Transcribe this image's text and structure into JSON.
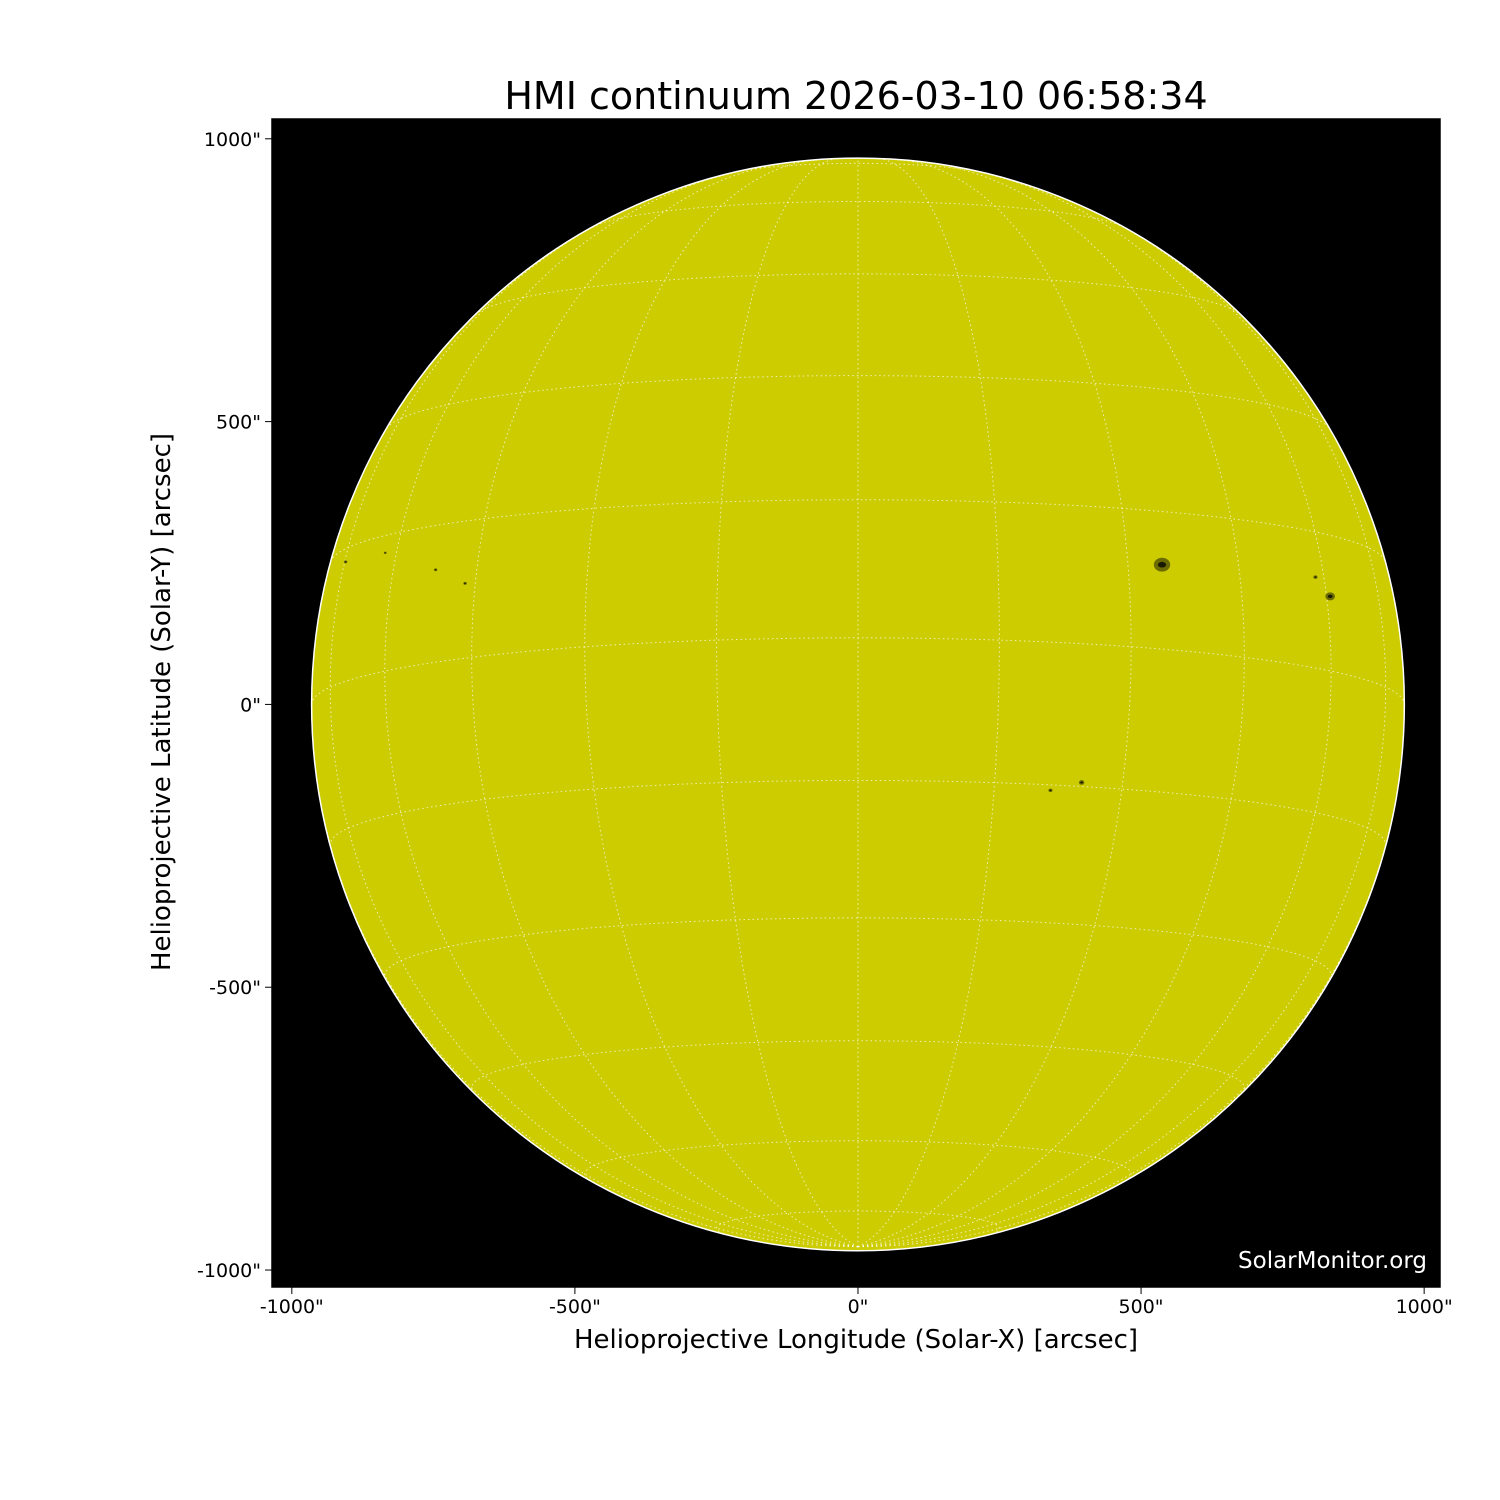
{
  "chart_data": {
    "type": "heatmap",
    "title": "HMI continuum 2026-03-10 06:58:34",
    "xlabel": "Helioprojective Longitude (Solar-X) [arcsec]",
    "ylabel": "Helioprojective Latitude (Solar-Y) [arcsec]",
    "xlim": [
      -1035,
      1028
    ],
    "ylim": [
      -1030,
      1035
    ],
    "xticks": [
      -1000,
      -500,
      0,
      500,
      1000
    ],
    "yticks": [
      -1000,
      -500,
      0,
      500,
      1000
    ],
    "xtick_labels": [
      "-1000\"",
      "-500\"",
      "0\"",
      "500\"",
      "1000\""
    ],
    "ytick_labels": [
      "-1000\"",
      "-500\"",
      "0\"",
      "500\"",
      "1000\""
    ],
    "solar_radius_arcsec": 965,
    "grid": {
      "type": "heliographic",
      "spacing_deg": 15,
      "b0_deg": -7,
      "style": "dotted",
      "color": "#ffffff"
    },
    "colors": {
      "disk": "#cccc00",
      "background": "#000000",
      "sunspot": "#1a1a00"
    },
    "sunspots_arcsec": [
      {
        "x": 537,
        "y": 247,
        "size": 24
      },
      {
        "x": 834,
        "y": 191,
        "size": 14
      },
      {
        "x": 808,
        "y": 225,
        "size": 6
      },
      {
        "x": 395,
        "y": -138,
        "size": 8
      },
      {
        "x": 340,
        "y": -152,
        "size": 6
      },
      {
        "x": -694,
        "y": 214,
        "size": 5
      },
      {
        "x": -746,
        "y": 238,
        "size": 5
      },
      {
        "x": -835,
        "y": 268,
        "size": 4
      },
      {
        "x": -905,
        "y": 252,
        "size": 5
      }
    ]
  },
  "watermark": "SolarMonitor.org"
}
